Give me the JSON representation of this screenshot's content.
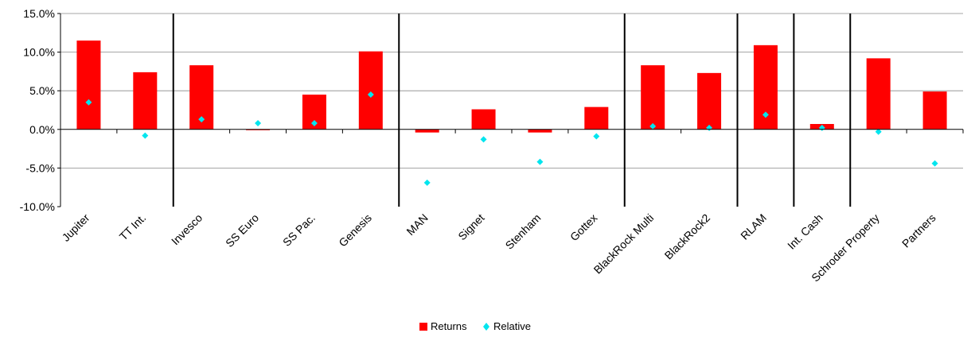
{
  "chart_data": {
    "type": "bar",
    "categories": [
      "Jupiter",
      "TT Int.",
      "Invesco",
      "SS Euro",
      "SS Pac.",
      "Genesis",
      "MAN",
      "Signet",
      "Stenham",
      "Gottex",
      "BlackRock Multi",
      "BlackRock2",
      "RLAM",
      "Int. Cash",
      "Schroder Property",
      "Partners"
    ],
    "series": [
      {
        "name": "Returns",
        "type": "bar",
        "color": "#ff0000",
        "values": [
          11.5,
          7.4,
          8.3,
          -0.1,
          4.5,
          10.1,
          -0.4,
          2.6,
          -0.4,
          2.9,
          8.3,
          7.3,
          10.9,
          0.7,
          9.2,
          4.9
        ]
      },
      {
        "name": "Relative",
        "type": "scatter",
        "color": "#00e5ee",
        "values": [
          3.5,
          -0.8,
          1.3,
          0.8,
          0.8,
          4.5,
          -6.9,
          -1.3,
          -4.2,
          -0.9,
          0.4,
          0.2,
          1.9,
          0.2,
          -0.3,
          -4.4
        ]
      }
    ],
    "ylim": [
      -10,
      15
    ],
    "yticks": [
      "15.0%",
      "10.0%",
      "5.0%",
      "0.0%",
      "-5.0%",
      "-10.0%"
    ],
    "ytick_values": [
      15,
      10,
      5,
      0,
      -5,
      -10
    ],
    "group_dividers_after": [
      "TT Int.",
      "Genesis",
      "Gottex",
      "BlackRock2",
      "RLAM",
      "Int. Cash"
    ],
    "grid": true,
    "legend_position": "bottom-center"
  }
}
